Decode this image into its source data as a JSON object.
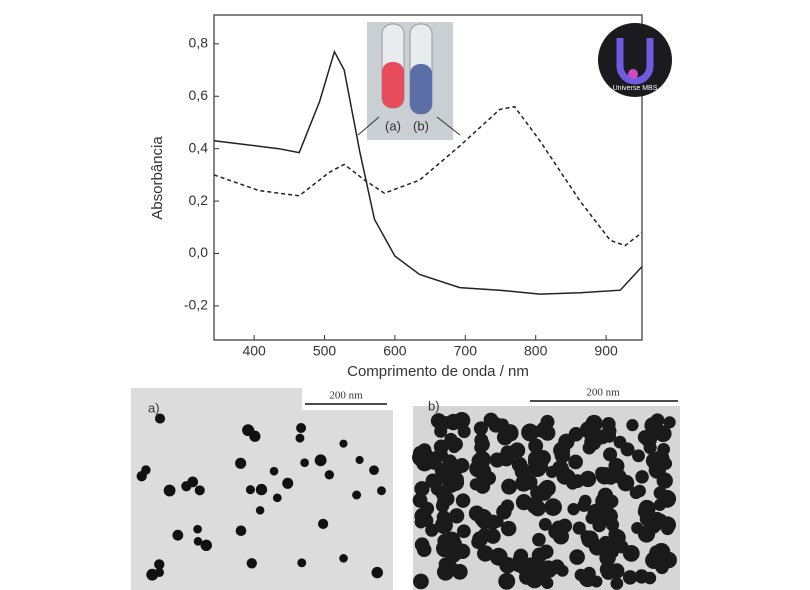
{
  "chart_data": {
    "type": "line",
    "x_label": "Comprimento de onda / nm",
    "y_label": "Absorbância",
    "xlim": [
      343,
      951
    ],
    "xticks": [
      400,
      500,
      600,
      700,
      800,
      900
    ],
    "ylim": [
      -0.33,
      0.91
    ],
    "yticks": [
      {
        "value": -0.2,
        "label": "-0,2"
      },
      {
        "value": 0,
        "label": "0,0"
      },
      {
        "value": 0.2,
        "label": "0,2"
      },
      {
        "value": 0.4,
        "label": "0,4"
      },
      {
        "value": 0.6,
        "label": "0,6"
      },
      {
        "value": 0.8,
        "label": "0,8"
      }
    ],
    "series": [
      {
        "color": "#222222",
        "dashed": false,
        "x": [
          343,
          435,
          464,
          493,
          514,
          528,
          550,
          571,
          600,
          635,
          692,
          749,
          806,
          863,
          920,
          951
        ],
        "values": [
          0.43,
          0.4,
          0.385,
          0.58,
          0.77,
          0.7,
          0.39,
          0.13,
          -0.01,
          -0.08,
          -0.13,
          -0.14,
          -0.155,
          -0.15,
          -0.14,
          -0.05
        ]
      },
      {
        "color": "#222222",
        "dashed": true,
        "x": [
          343,
          407,
          464,
          507,
          528,
          557,
          585,
          635,
          692,
          749,
          770,
          806,
          863,
          906,
          927,
          951
        ],
        "values": [
          0.3,
          0.24,
          0.22,
          0.31,
          0.34,
          0.28,
          0.23,
          0.28,
          0.41,
          0.55,
          0.56,
          0.43,
          0.2,
          0.05,
          0.03,
          0.08
        ]
      }
    ],
    "inset_labels": [
      "(a)",
      "(b)"
    ]
  },
  "logo": "Universe MBS",
  "images": [
    {
      "label": "a)",
      "scale": "200 nm"
    },
    {
      "label": "b)",
      "scale": "200 nm"
    }
  ]
}
